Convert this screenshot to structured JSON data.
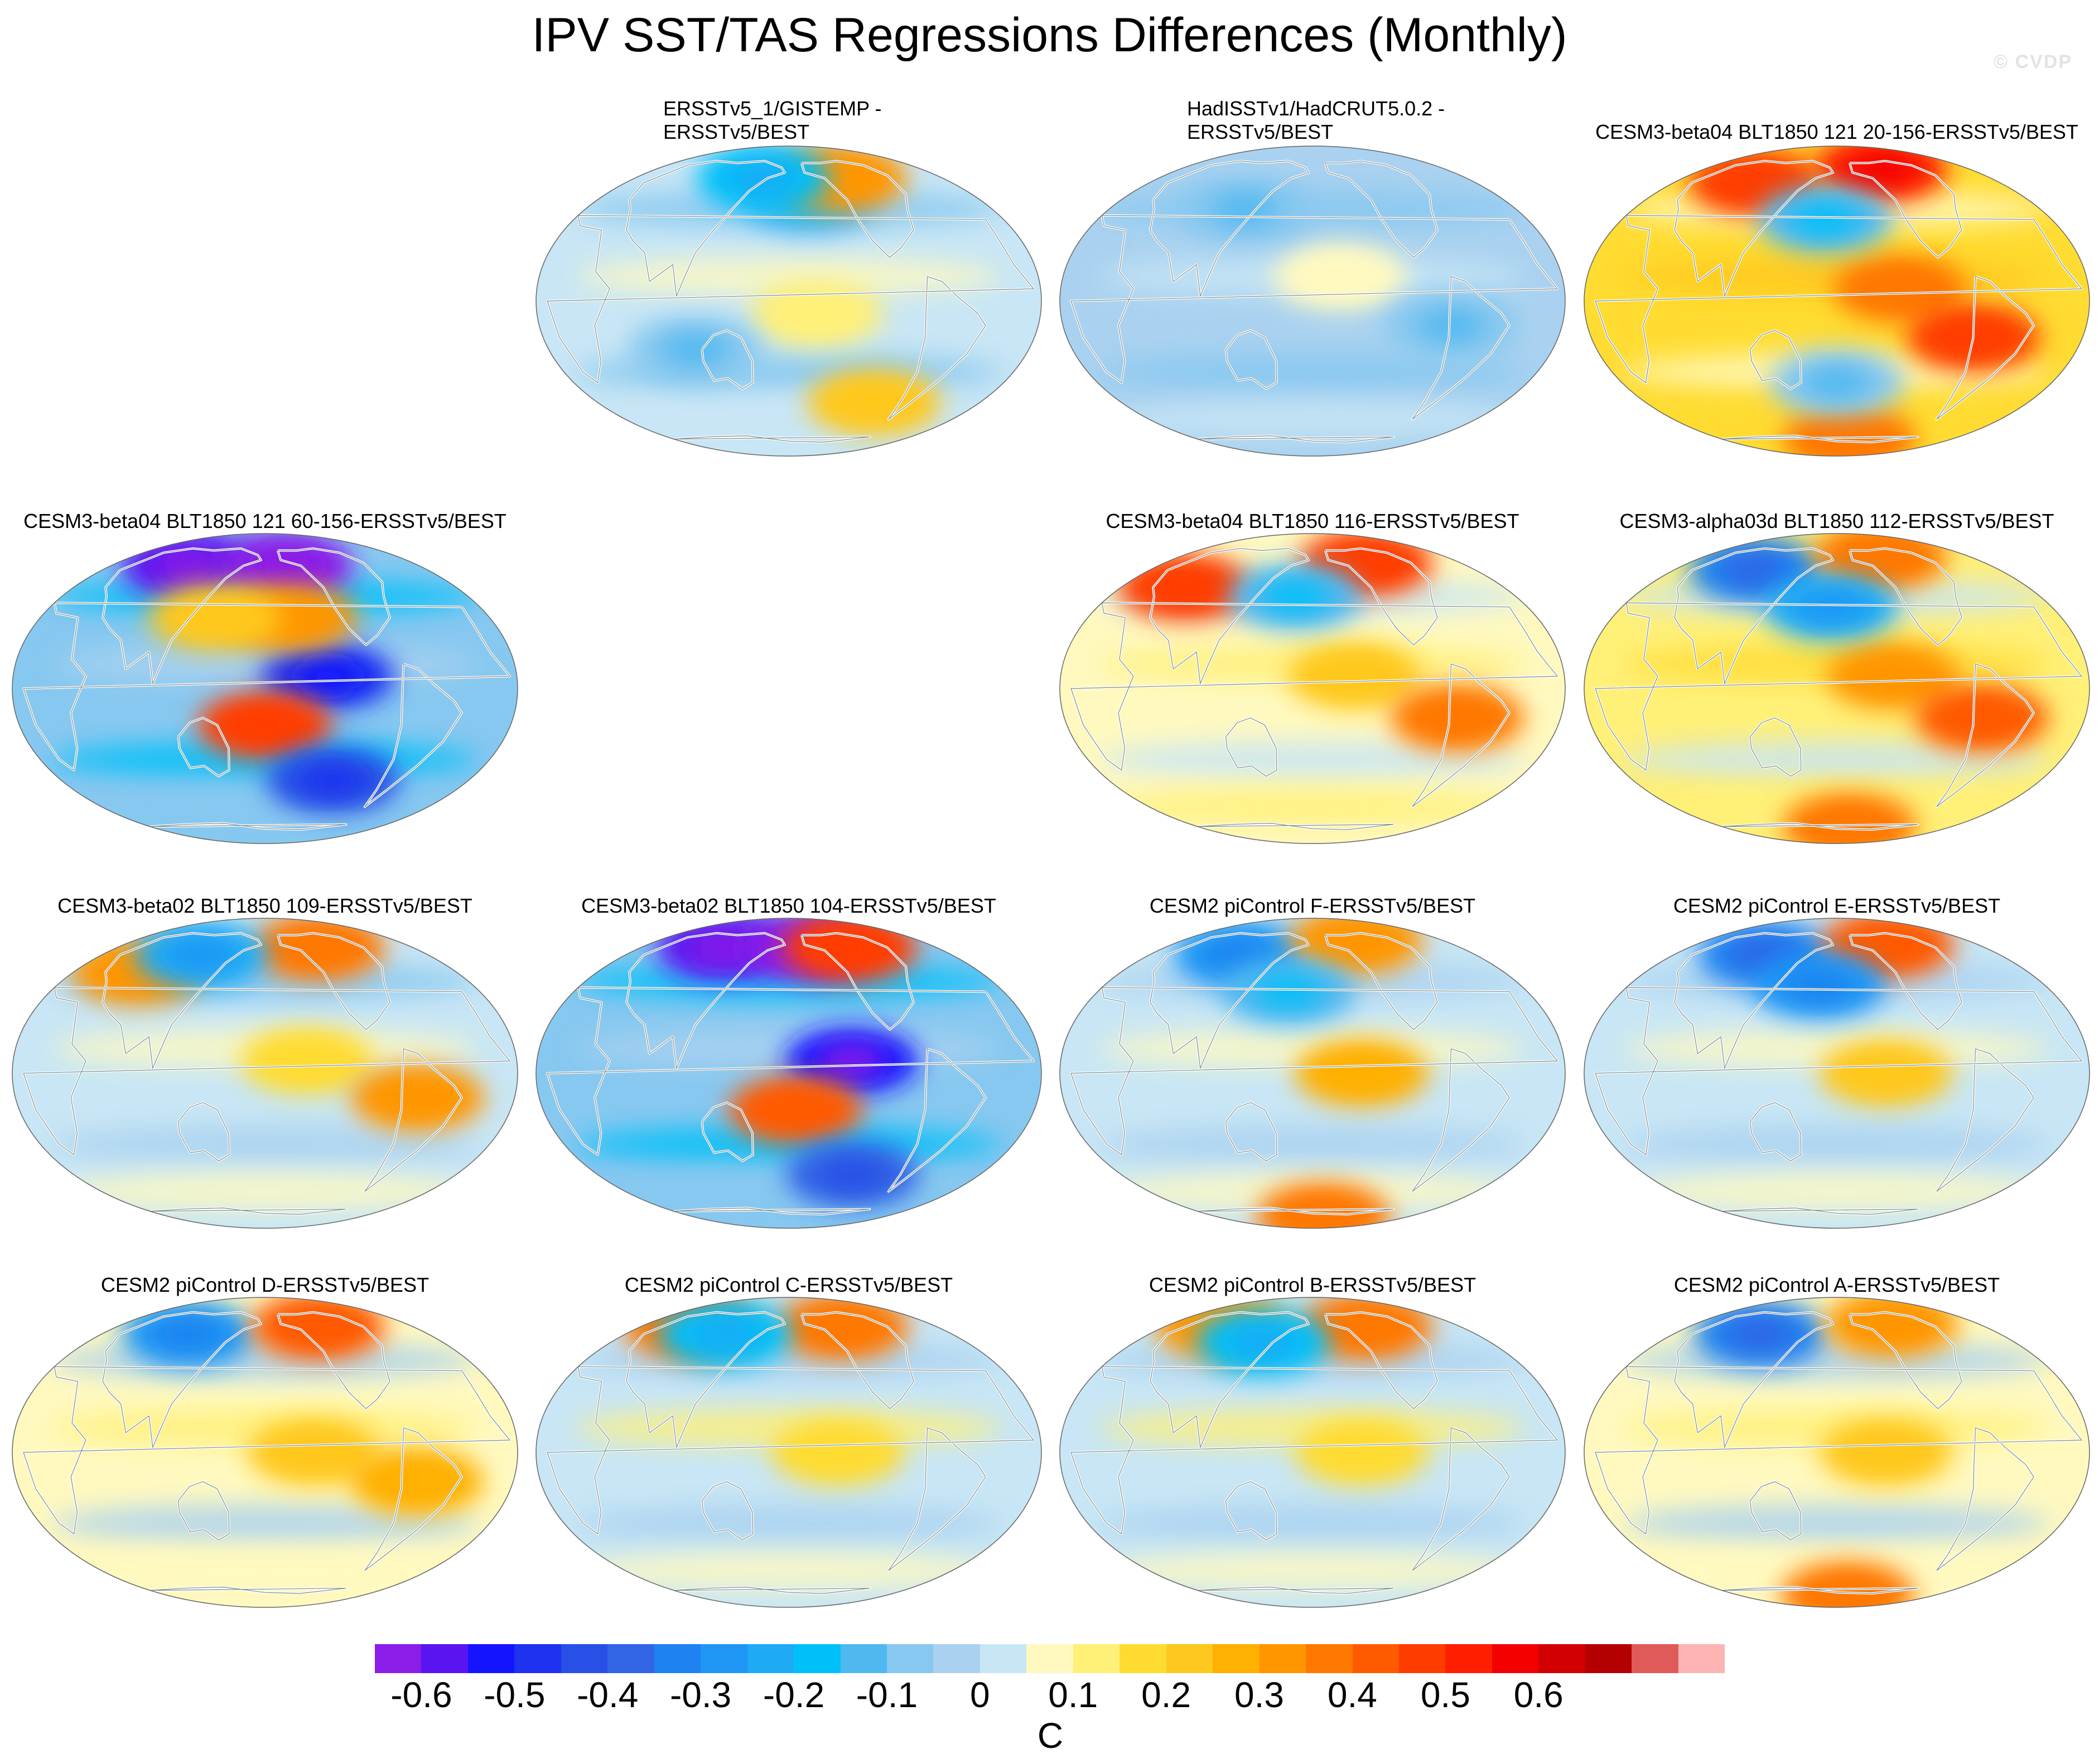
{
  "title": "IPV SST/TAS Regressions Differences (Monthly)",
  "watermark": "© CVDP",
  "chart_data": {
    "type": "heatmap",
    "title": "IPV SST/TAS Regressions Differences (Monthly)",
    "map_projection": "Robinson",
    "units": "C",
    "colorbar": {
      "levels": [
        -0.6,
        -0.55,
        -0.5,
        -0.45,
        -0.4,
        -0.35,
        -0.3,
        -0.25,
        -0.2,
        -0.15,
        -0.1,
        -0.05,
        0,
        0.05,
        0.1,
        0.15,
        0.2,
        0.25,
        0.3,
        0.35,
        0.4,
        0.45,
        0.5,
        0.55,
        0.6,
        0.65,
        0.7
      ],
      "labels": [
        "-0.6",
        "-0.5",
        "-0.4",
        "-0.3",
        "-0.2",
        "-0.1",
        "0",
        "0.1",
        "0.2",
        "0.3",
        "0.4",
        "0.5",
        "0.6"
      ],
      "colors": [
        "#8a1ee8",
        "#5a14f0",
        "#1414ff",
        "#1e32f0",
        "#2850e6",
        "#3264e6",
        "#1e82f0",
        "#1e96f5",
        "#1eaaf5",
        "#00c0f8",
        "#50b8f0",
        "#87c8f0",
        "#aad2f0",
        "#c8e6f5",
        "#fff9c0",
        "#fff078",
        "#ffdc32",
        "#ffc81e",
        "#ffb000",
        "#ff9600",
        "#ff7800",
        "#ff5a00",
        "#ff3c00",
        "#ff1e00",
        "#f50000",
        "#d20000",
        "#b40000",
        "#e05a5a",
        "#ffb4b4"
      ]
    },
    "panels": [
      {
        "title": "ERSSTv5_1/GISTEMP - ERSSTv5/BEST",
        "title_lines": [
          "ERSSTv5_1/GISTEMP -",
          "ERSSTv5/BEST"
        ],
        "row": 1,
        "col": 2,
        "mean_anomaly": 0.0,
        "features": [
          {
            "lon": 200,
            "lat": 45,
            "val": -0.15
          },
          {
            "lon": 240,
            "lat": 58,
            "val": 0.3
          },
          {
            "lon": 150,
            "lat": 58,
            "val": -0.2
          },
          {
            "lon": 200,
            "lat": -5,
            "val": 0.1
          },
          {
            "lon": 260,
            "lat": -45,
            "val": 0.2
          },
          {
            "lon": 110,
            "lat": -20,
            "val": -0.1
          }
        ]
      },
      {
        "title": "HadISSTv1/HadCRUT5.0.2 - ERSSTv5/BEST",
        "title_lines": [
          "HadISSTv1/HadCRUT5.0.2 -",
          "ERSSTv5/BEST"
        ],
        "row": 1,
        "col": 3,
        "mean_anomaly": -0.02,
        "features": [
          {
            "lon": 200,
            "lat": 10,
            "val": 0.05
          },
          {
            "lon": 120,
            "lat": 40,
            "val": -0.1
          },
          {
            "lon": 280,
            "lat": -10,
            "val": -0.1
          }
        ]
      },
      {
        "title": "CESM3-beta04 BLT1850 121 20-156-ERSSTv5/BEST",
        "row": 1,
        "col": 4,
        "mean_anomaly": 0.15,
        "features": [
          {
            "lon": 225,
            "lat": 5,
            "val": 0.35
          },
          {
            "lon": 280,
            "lat": -15,
            "val": 0.45
          },
          {
            "lon": 240,
            "lat": 65,
            "val": 0.5
          },
          {
            "lon": 90,
            "lat": 55,
            "val": 0.45
          },
          {
            "lon": 170,
            "lat": 35,
            "val": -0.15
          },
          {
            "lon": 200,
            "lat": -70,
            "val": 0.35
          },
          {
            "lon": 180,
            "lat": -35,
            "val": -0.1
          }
        ]
      },
      {
        "title": "CESM3-beta04 BLT1850 121 60-156-ERSSTv5/BEST",
        "row": 2,
        "col": 1,
        "mean_anomaly": -0.1,
        "features": [
          {
            "lon": 225,
            "lat": 5,
            "val": -0.5
          },
          {
            "lon": 180,
            "lat": -15,
            "val": 0.45
          },
          {
            "lon": 90,
            "lat": 58,
            "val": -0.6
          },
          {
            "lon": 205,
            "lat": 58,
            "val": -0.65
          },
          {
            "lon": 200,
            "lat": 30,
            "val": 0.3
          },
          {
            "lon": 240,
            "lat": -40,
            "val": -0.45
          },
          {
            "lon": 140,
            "lat": 30,
            "val": 0.2
          }
        ]
      },
      {
        "title": "CESM3-beta04 BLT1850 116-ERSSTv5/BEST",
        "row": 2,
        "col": 3,
        "mean_anomaly": 0.08,
        "features": [
          {
            "lon": 210,
            "lat": 5,
            "val": 0.2
          },
          {
            "lon": 60,
            "lat": 45,
            "val": 0.45
          },
          {
            "lon": 245,
            "lat": 60,
            "val": 0.45
          },
          {
            "lon": 285,
            "lat": -12,
            "val": 0.35
          },
          {
            "lon": 165,
            "lat": 40,
            "val": -0.15
          }
        ]
      },
      {
        "title": "CESM3-alpha03d BLT1850 112-ERSSTv5/BEST",
        "row": 2,
        "col": 4,
        "mean_anomaly": 0.1,
        "features": [
          {
            "lon": 220,
            "lat": 5,
            "val": 0.3
          },
          {
            "lon": 90,
            "lat": 55,
            "val": -0.35
          },
          {
            "lon": 285,
            "lat": -12,
            "val": 0.4
          },
          {
            "lon": 240,
            "lat": 65,
            "val": 0.35
          },
          {
            "lon": 200,
            "lat": -70,
            "val": 0.35
          },
          {
            "lon": 175,
            "lat": 35,
            "val": -0.25
          }
        ]
      },
      {
        "title": "CESM3-beta02 BLT1850 109-ERSSTv5/BEST",
        "row": 3,
        "col": 1,
        "mean_anomaly": 0.02,
        "features": [
          {
            "lon": 210,
            "lat": 5,
            "val": 0.15
          },
          {
            "lon": 60,
            "lat": 45,
            "val": 0.3
          },
          {
            "lon": 245,
            "lat": 60,
            "val": 0.35
          },
          {
            "lon": 290,
            "lat": -10,
            "val": 0.3
          },
          {
            "lon": 110,
            "lat": 55,
            "val": -0.25
          }
        ]
      },
      {
        "title": "CESM3-beta02 BLT1850 104-ERSSTv5/BEST",
        "row": 3,
        "col": 2,
        "mean_anomaly": -0.1,
        "features": [
          {
            "lon": 225,
            "lat": 5,
            "val": -0.55
          },
          {
            "lon": 185,
            "lat": -15,
            "val": 0.4
          },
          {
            "lon": 100,
            "lat": 60,
            "val": -0.6
          },
          {
            "lon": 205,
            "lat": 60,
            "val": -0.65
          },
          {
            "lon": 255,
            "lat": 60,
            "val": 0.45
          },
          {
            "lon": 240,
            "lat": -45,
            "val": -0.4
          }
        ]
      },
      {
        "title": "CESM2 piControl F-ERSSTv5/BEST",
        "row": 3,
        "col": 3,
        "mean_anomaly": 0.03,
        "features": [
          {
            "lon": 215,
            "lat": 0,
            "val": 0.25
          },
          {
            "lon": 100,
            "lat": 55,
            "val": -0.3
          },
          {
            "lon": 240,
            "lat": 65,
            "val": 0.3
          },
          {
            "lon": 200,
            "lat": -75,
            "val": 0.35
          },
          {
            "lon": 160,
            "lat": 35,
            "val": -0.15
          }
        ]
      },
      {
        "title": "CESM2 piControl E-ERSSTv5/BEST",
        "row": 3,
        "col": 4,
        "mean_anomaly": 0.03,
        "features": [
          {
            "lon": 215,
            "lat": 0,
            "val": 0.2
          },
          {
            "lon": 100,
            "lat": 55,
            "val": -0.35
          },
          {
            "lon": 245,
            "lat": 62,
            "val": 0.4
          },
          {
            "lon": 165,
            "lat": 38,
            "val": -0.3
          }
        ]
      },
      {
        "title": "CESM2 piControl D-ERSSTv5/BEST",
        "row": 4,
        "col": 1,
        "mean_anomaly": 0.05,
        "features": [
          {
            "lon": 215,
            "lat": 0,
            "val": 0.2
          },
          {
            "lon": 95,
            "lat": 55,
            "val": -0.3
          },
          {
            "lon": 245,
            "lat": 60,
            "val": 0.4
          },
          {
            "lon": 290,
            "lat": -12,
            "val": 0.25
          }
        ]
      },
      {
        "title": "CESM2 piControl C-ERSSTv5/BEST",
        "row": 4,
        "col": 2,
        "mean_anomaly": 0.04,
        "features": [
          {
            "lon": 215,
            "lat": 0,
            "val": 0.15
          },
          {
            "lon": 60,
            "lat": 60,
            "val": 0.35
          },
          {
            "lon": 245,
            "lat": 60,
            "val": 0.35
          },
          {
            "lon": 110,
            "lat": 55,
            "val": -0.2
          }
        ]
      },
      {
        "title": "CESM2 piControl B-ERSSTv5/BEST",
        "row": 4,
        "col": 3,
        "mean_anomaly": 0.04,
        "features": [
          {
            "lon": 215,
            "lat": 0,
            "val": 0.15
          },
          {
            "lon": 70,
            "lat": 60,
            "val": 0.3
          },
          {
            "lon": 245,
            "lat": 60,
            "val": 0.35
          },
          {
            "lon": 130,
            "lat": 50,
            "val": -0.2
          }
        ]
      },
      {
        "title": "CESM2 piControl A-ERSSTv5/BEST",
        "row": 4,
        "col": 4,
        "mean_anomaly": 0.05,
        "features": [
          {
            "lon": 215,
            "lat": 0,
            "val": 0.2
          },
          {
            "lon": 95,
            "lat": 55,
            "val": -0.35
          },
          {
            "lon": 250,
            "lat": 62,
            "val": 0.3
          },
          {
            "lon": 200,
            "lat": -75,
            "val": 0.35
          }
        ]
      }
    ]
  }
}
